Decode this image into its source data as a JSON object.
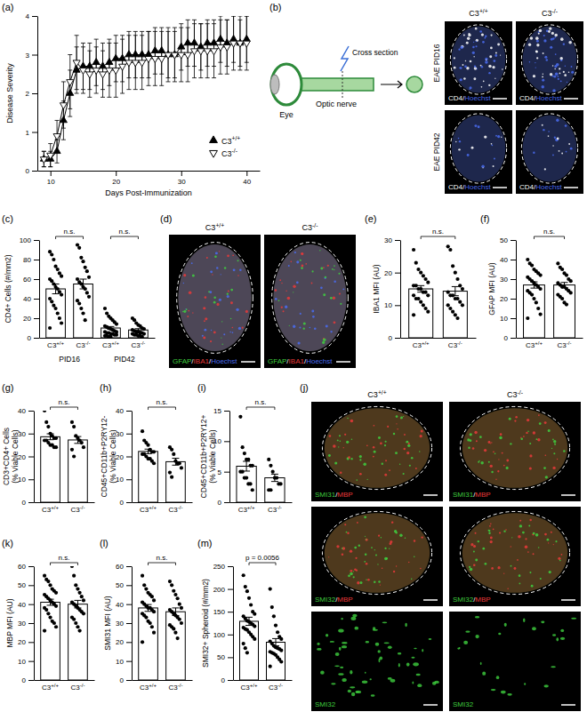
{
  "chart_data": [
    {
      "panel": "(a)",
      "type": "line",
      "xlabel": "Days Post-Immunization",
      "ylabel": "Disease Severity",
      "x": [
        9,
        10,
        11,
        12,
        13,
        14,
        15,
        16,
        17,
        18,
        19,
        20,
        21,
        22,
        23,
        24,
        25,
        26,
        27,
        28,
        29,
        30,
        31,
        32,
        33,
        34,
        35,
        36,
        37,
        38,
        39,
        40
      ],
      "xlim": [
        8,
        42
      ],
      "xticks": [
        10,
        20,
        30,
        40
      ],
      "ylim": [
        0,
        4
      ],
      "yticks": [
        0,
        1,
        2,
        3,
        4
      ],
      "legend": "bottom-right",
      "series": [
        {
          "name": "C3+/+",
          "color": "#000000",
          "marker": "triangle",
          "values": [
            0.3,
            0.3,
            0.5,
            1.3,
            2.0,
            2.6,
            2.7,
            2.7,
            2.8,
            2.7,
            2.8,
            2.9,
            2.9,
            3.0,
            3.0,
            3.0,
            3.0,
            3.1,
            3.1,
            3.0,
            3.0,
            3.2,
            3.3,
            3.3,
            3.2,
            3.3,
            3.3,
            3.4,
            3.3,
            3.4,
            3.3,
            3.4
          ],
          "error": [
            0.2,
            0.2,
            0.3,
            0.5,
            0.6,
            0.6,
            0.6,
            0.6,
            0.6,
            0.6,
            0.6,
            0.6,
            0.6,
            0.6,
            0.6,
            0.6,
            0.6,
            0.6,
            0.6,
            0.6,
            0.6,
            0.6,
            0.6,
            0.6,
            0.6,
            0.6,
            0.6,
            0.6,
            0.6,
            0.6,
            0.6,
            0.6
          ]
        },
        {
          "name": "C3-/-",
          "color": "#000000",
          "marker": "triangle-down-open",
          "values": [
            0.3,
            0.4,
            0.9,
            1.7,
            2.3,
            2.8,
            2.6,
            2.5,
            2.6,
            2.5,
            2.6,
            2.6,
            2.7,
            2.8,
            2.8,
            2.8,
            2.9,
            2.9,
            2.9,
            3.0,
            3.0,
            3.0,
            3.0,
            3.1,
            3.1,
            3.1,
            3.1,
            3.2,
            3.2,
            3.3,
            3.3,
            3.3
          ],
          "error": [
            0.2,
            0.3,
            0.4,
            0.6,
            0.7,
            0.7,
            0.6,
            0.6,
            0.6,
            0.6,
            0.7,
            0.7,
            0.7,
            0.7,
            0.7,
            0.7,
            0.7,
            0.7,
            0.7,
            0.7,
            0.7,
            0.7,
            0.7,
            0.7,
            0.7,
            0.7,
            0.7,
            0.7,
            0.7,
            0.7,
            0.7,
            0.7
          ]
        }
      ]
    },
    {
      "panel": "(c)",
      "type": "bar",
      "ylabel": "CD4+ Cells (#/mm2)",
      "ylim": [
        0,
        100
      ],
      "yticks": [
        0,
        20,
        40,
        60,
        80,
        100
      ],
      "categories": [
        "C3+/+",
        "C3-/-",
        "C3+/+",
        "C3-/-"
      ],
      "groups": [
        "PID16",
        "PID42"
      ],
      "annotations": [
        "n.s.",
        "n.s."
      ],
      "values": [
        50,
        55,
        10,
        8
      ],
      "error": [
        5,
        5,
        1.5,
        1.3
      ],
      "points": [
        [
          88,
          85,
          80,
          73,
          70,
          66,
          63,
          60,
          58,
          55,
          52,
          50,
          47,
          44,
          40,
          37,
          33,
          30,
          25,
          20,
          15,
          10
        ],
        [
          95,
          92,
          82,
          78,
          72,
          68,
          62,
          60,
          57,
          55,
          52,
          50,
          46,
          42,
          38,
          35,
          30,
          25,
          18
        ],
        [
          30,
          25,
          22,
          20,
          18,
          16,
          14,
          12,
          11,
          10,
          9,
          8,
          7,
          6,
          6,
          5,
          5,
          4,
          4,
          3,
          3,
          2,
          2,
          1,
          1
        ],
        [
          20,
          18,
          15,
          13,
          12,
          10,
          9,
          8,
          7,
          6,
          6,
          5,
          5,
          4,
          4,
          3,
          3,
          2,
          2,
          1
        ]
      ]
    },
    {
      "panel": "(e)",
      "type": "bar",
      "ylabel": "IBA1 MFI (AU)",
      "ylim": [
        0,
        30
      ],
      "yticks": [
        0,
        10,
        20,
        30
      ],
      "categories": [
        "C3+/+",
        "C3-/-"
      ],
      "annotations": [
        "n.s."
      ],
      "values": [
        15,
        14.3
      ],
      "error": [
        1,
        1.4
      ],
      "points": [
        [
          27,
          23,
          21,
          20,
          19,
          18,
          17,
          16,
          16,
          15,
          15,
          14,
          14,
          13,
          13,
          12,
          12,
          11,
          10,
          9,
          8,
          7
        ],
        [
          28,
          27,
          22,
          20,
          18,
          16,
          15,
          14,
          13,
          13,
          12,
          12,
          11,
          10,
          10,
          9,
          8,
          7,
          6
        ]
      ]
    },
    {
      "panel": "(f)",
      "type": "bar",
      "ylabel": "GFAP MFI (AU)",
      "ylim": [
        0,
        50
      ],
      "yticks": [
        0,
        10,
        20,
        30,
        40,
        50
      ],
      "categories": [
        "C3+/+",
        "C3-/-"
      ],
      "annotations": [
        "n.s."
      ],
      "values": [
        27,
        27
      ],
      "error": [
        1.6,
        1.3
      ],
      "points": [
        [
          40,
          38,
          37,
          35,
          34,
          33,
          32,
          31,
          30,
          29,
          28,
          27,
          26,
          25,
          24,
          23,
          22,
          20,
          18,
          15,
          12,
          10
        ],
        [
          38,
          36,
          35,
          33,
          32,
          30,
          29,
          28,
          27,
          26,
          26,
          25,
          24,
          23,
          22,
          21,
          20,
          18,
          17
        ]
      ]
    },
    {
      "panel": "(g)",
      "type": "bar",
      "ylabel": "CD3+CD4+ Cells (% Viable Cells)",
      "ylim": [
        0,
        40
      ],
      "yticks": [
        0,
        10,
        20,
        30,
        40
      ],
      "categories": [
        "C3+/+",
        "C3-/-"
      ],
      "annotations": [
        "n.s."
      ],
      "values": [
        28.6,
        27.2
      ],
      "error": [
        1.3,
        1.5
      ],
      "points": [
        [
          40,
          35,
          33,
          30,
          29,
          28,
          28,
          27,
          27,
          26,
          25,
          25,
          24,
          24
        ],
        [
          35,
          33,
          29,
          28,
          27,
          26,
          24,
          23,
          20
        ]
      ]
    },
    {
      "panel": "(h)",
      "type": "bar",
      "ylabel": "CD45+CD11b+P2RY12- (% Viable Cells)",
      "ylim": [
        0,
        40
      ],
      "yticks": [
        0,
        10,
        20,
        30,
        40
      ],
      "categories": [
        "C3+/+",
        "C3-/-"
      ],
      "annotations": [
        "n.s."
      ],
      "values": [
        22.2,
        17.7
      ],
      "error": [
        1,
        1.5
      ],
      "points": [
        [
          31,
          27,
          26,
          25,
          23,
          22,
          22,
          21,
          21,
          20,
          19,
          19,
          18,
          17
        ],
        [
          24,
          23,
          21,
          18,
          17,
          17,
          15,
          13,
          11
        ]
      ]
    },
    {
      "panel": "(i)",
      "type": "bar",
      "ylabel": "CD45+CD11b+P2RY12+ (% Viable Cells)",
      "ylim": [
        0,
        15
      ],
      "yticks": [
        0,
        5,
        10,
        15
      ],
      "categories": [
        "C3+/+",
        "C3-/-"
      ],
      "annotations": [
        "n.s."
      ],
      "values": [
        5.9,
        4.0
      ],
      "error": [
        0.8,
        0.6
      ],
      "points": [
        [
          14,
          9,
          8,
          7,
          7,
          6,
          6,
          5,
          5,
          4,
          4,
          3,
          3,
          2
        ],
        [
          7,
          6,
          5,
          4,
          4,
          3,
          3,
          2,
          2
        ]
      ]
    },
    {
      "panel": "(k)",
      "type": "bar",
      "ylabel": "MBP MFI (AU)",
      "ylim": [
        0,
        60
      ],
      "yticks": [
        0,
        10,
        20,
        30,
        40,
        50,
        60
      ],
      "categories": [
        "C3+/+",
        "C3-/-"
      ],
      "annotations": [
        "n.s."
      ],
      "values": [
        41,
        40
      ],
      "error": [
        1.6,
        2
      ],
      "points": [
        [
          55,
          53,
          52,
          50,
          48,
          47,
          46,
          45,
          44,
          43,
          42,
          41,
          40,
          39,
          38,
          37,
          35,
          33,
          31,
          30,
          28,
          26
        ],
        [
          60,
          55,
          50,
          48,
          46,
          44,
          42,
          41,
          40,
          39,
          38,
          37,
          36,
          35,
          33,
          32,
          30,
          28,
          26
        ]
      ]
    },
    {
      "panel": "(l)",
      "type": "bar",
      "ylabel": "SMI31 MFI (AU)",
      "ylim": [
        0,
        60
      ],
      "yticks": [
        0,
        10,
        20,
        30,
        40,
        50,
        60
      ],
      "categories": [
        "C3+/+",
        "C3-/-"
      ],
      "annotations": [
        "n.s."
      ],
      "values": [
        38,
        36
      ],
      "error": [
        1.8,
        2
      ],
      "points": [
        [
          55,
          50,
          48,
          46,
          45,
          44,
          42,
          41,
          40,
          39,
          38,
          38,
          37,
          36,
          35,
          34,
          33,
          31,
          30,
          28,
          25,
          20
        ],
        [
          52,
          50,
          47,
          45,
          43,
          40,
          38,
          37,
          36,
          35,
          34,
          33,
          32,
          30,
          29,
          28,
          27,
          25,
          22
        ]
      ]
    },
    {
      "panel": "(m)",
      "type": "bar",
      "ylabel": "SMI32+ Spheroid (#/mm2)",
      "ylim": [
        0,
        250
      ],
      "yticks": [
        0,
        50,
        100,
        150,
        200,
        250
      ],
      "categories": [
        "C3+/+",
        "C3-/-"
      ],
      "annotations": [
        "p = 0.0056"
      ],
      "values": [
        129,
        83
      ],
      "error": [
        9,
        8
      ],
      "points": [
        [
          230,
          205,
          195,
          180,
          165,
          150,
          145,
          140,
          135,
          130,
          128,
          125,
          122,
          118,
          115,
          112,
          110,
          105,
          100,
          95,
          90,
          80,
          70,
          60
        ],
        [
          200,
          160,
          140,
          120,
          105,
          95,
          90,
          85,
          80,
          75,
          72,
          70,
          68,
          65,
          62,
          60,
          58,
          55,
          50,
          45,
          40,
          30
        ]
      ]
    }
  ],
  "image_panels": [
    {
      "panel": "(b)",
      "schematic_labels": [
        "Eye",
        "Optic nerve",
        "Cross section"
      ],
      "columns": [
        "C3+/+",
        "C3-/-"
      ],
      "rows": [
        "EAE PID16",
        "EAE PID42"
      ],
      "stains": [
        {
          "label": "CD4/Hoechst",
          "colors": [
            "#ffffff",
            "#4a6cf0"
          ]
        }
      ]
    },
    {
      "panel": "(d)",
      "columns": [
        "C3+/+",
        "C3-/-"
      ],
      "stains": [
        {
          "label": "GFAP/IBA1/Hoechst",
          "colors": [
            "#3fcf3f",
            "#e83a3a",
            "#4a6cf0"
          ]
        }
      ]
    },
    {
      "panel": "(j)",
      "columns": [
        "C3+/+",
        "C3-/-"
      ],
      "stains": [
        {
          "label": "SMI31/MBP",
          "colors": [
            "#3fcf3f",
            "#e83a3a"
          ]
        },
        {
          "label": "SMI32/MBP",
          "colors": [
            "#3fcf3f",
            "#e83a3a"
          ]
        },
        {
          "label": "SMI32",
          "colors": [
            "#3fcf3f"
          ]
        }
      ]
    }
  ]
}
